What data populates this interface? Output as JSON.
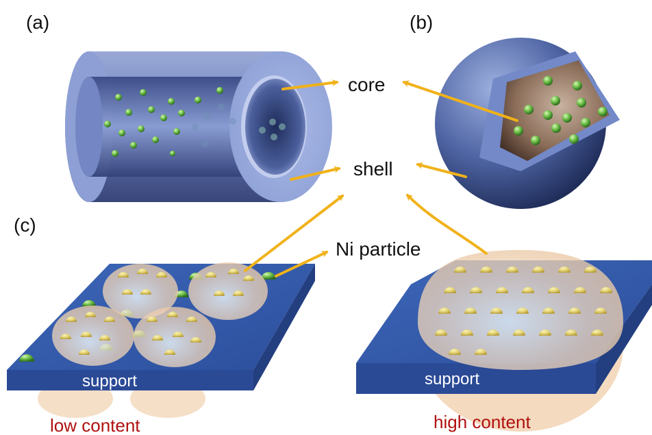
{
  "panels": {
    "a": "(a)",
    "b": "(b)",
    "c": "(c)"
  },
  "labels": {
    "core": "core",
    "shell": "shell",
    "ni_particle": "Ni particle"
  },
  "supports": {
    "left": "support",
    "right": "support"
  },
  "captions": {
    "low": "low content",
    "high": "high content"
  },
  "colors": {
    "arrow": "#f0b21a",
    "support_blue": "#2f56a8",
    "particle_green": "#6fc24a",
    "shell_blue": "#6f86c4",
    "core_brown": "#6b4e3e",
    "caption_red": "#b01010"
  }
}
